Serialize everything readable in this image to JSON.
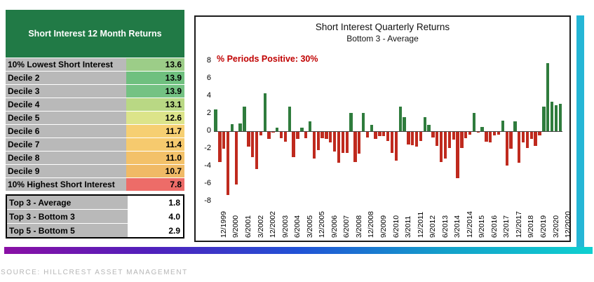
{
  "table": {
    "title": "Short Interest 12 Month Returns",
    "rows": [
      {
        "label": "10% Lowest Short Interest",
        "value": "13.6",
        "color": "#9ccd88"
      },
      {
        "label": "Decile 2",
        "value": "13.9",
        "color": "#6fc07f"
      },
      {
        "label": "Decile 3",
        "value": "13.9",
        "color": "#74c283"
      },
      {
        "label": "Decile 4",
        "value": "13.1",
        "color": "#b9d884"
      },
      {
        "label": "Decile 5",
        "value": "12.6",
        "color": "#dce48a"
      },
      {
        "label": "Decile 6",
        "value": "11.7",
        "color": "#f6cf72"
      },
      {
        "label": "Decile 7",
        "value": "11.4",
        "color": "#f6ca6e"
      },
      {
        "label": "Decile 8",
        "value": "11.0",
        "color": "#f3c169"
      },
      {
        "label": "Decile 9",
        "value": "10.7",
        "color": "#f0ba66"
      },
      {
        "label": "10% Highest Short Interest",
        "value": "7.8",
        "color": "#ed6c68"
      }
    ],
    "summary_rows": [
      {
        "label": "Top 3 - Average",
        "value": "1.8"
      },
      {
        "label": "Top 3 - Bottom 3",
        "value": "4.0"
      },
      {
        "label": "Top 5 - Bottom 5",
        "value": "2.9"
      }
    ]
  },
  "chart_data": {
    "type": "bar",
    "title": "Short Interest Quarterly Returns",
    "subtitle": "Bottom 3 - Average",
    "annotation": "% Periods Positive: 30%",
    "annotation_color": "#c00000",
    "ylim": [
      -8,
      8
    ],
    "yticks": [
      8,
      6,
      4,
      2,
      0,
      -2,
      -4,
      -6,
      -8
    ],
    "grid": false,
    "legend_position": "none",
    "tick_every": 3,
    "tick_labels": [
      "12/1999",
      "9/2000",
      "6/2001",
      "3/2002",
      "12/2002",
      "9/2003",
      "6/2004",
      "3/2005",
      "12/2005",
      "9/2006",
      "6/2007",
      "3/2008",
      "12/2008",
      "9/2009",
      "6/2010",
      "3/2011",
      "12/2011",
      "9/2012",
      "6/2013",
      "3/2014",
      "12/2014",
      "9/2015",
      "6/2016",
      "3/2017",
      "12/2017",
      "9/2018",
      "6/2019",
      "3/2020",
      "12/2020"
    ],
    "positive_color": "#2f7c3d",
    "negative_color": "#bf2a1e",
    "x": [
      "12/1999",
      "3/2000",
      "6/2000",
      "9/2000",
      "12/2000",
      "3/2001",
      "6/2001",
      "9/2001",
      "12/2001",
      "3/2002",
      "6/2002",
      "9/2002",
      "12/2002",
      "3/2003",
      "6/2003",
      "9/2003",
      "12/2003",
      "3/2004",
      "6/2004",
      "9/2004",
      "12/2004",
      "3/2005",
      "6/2005",
      "9/2005",
      "12/2005",
      "3/2006",
      "6/2006",
      "9/2006",
      "12/2006",
      "3/2007",
      "6/2007",
      "9/2007",
      "12/2007",
      "3/2008",
      "6/2008",
      "9/2008",
      "12/2008",
      "3/2009",
      "6/2009",
      "9/2009",
      "12/2009",
      "3/2010",
      "6/2010",
      "9/2010",
      "12/2010",
      "3/2011",
      "6/2011",
      "9/2011",
      "12/2011",
      "3/2012",
      "6/2012",
      "9/2012",
      "12/2012",
      "3/2013",
      "6/2013",
      "9/2013",
      "12/2013",
      "3/2014",
      "6/2014",
      "9/2014",
      "12/2014",
      "3/2015",
      "6/2015",
      "9/2015",
      "12/2015",
      "3/2016",
      "6/2016",
      "9/2016",
      "12/2016",
      "3/2017",
      "6/2017",
      "9/2017",
      "12/2017",
      "3/2018",
      "6/2018",
      "9/2018",
      "12/2018",
      "3/2019",
      "6/2019",
      "9/2019",
      "12/2019",
      "3/2020",
      "6/2020",
      "9/2020",
      "12/2020"
    ],
    "values": [
      2.5,
      -3.4,
      -1.9,
      -7.2,
      0.8,
      -6.0,
      0.9,
      2.8,
      -1.7,
      -2.9,
      -4.2,
      -0.4,
      4.3,
      -0.8,
      -0.1,
      0.4,
      -0.7,
      -1.1,
      2.8,
      -2.9,
      -0.8,
      0.4,
      -0.7,
      1.1,
      -3.0,
      -2.1,
      -0.7,
      -0.8,
      -1.2,
      -2.2,
      -3.5,
      -2.4,
      -2.4,
      2.1,
      -3.4,
      -2.5,
      2.1,
      -0.6,
      0.7,
      -0.8,
      -0.5,
      -0.5,
      -1.0,
      -2.4,
      -3.3,
      2.8,
      1.6,
      -1.4,
      -1.5,
      -1.7,
      -1.0,
      1.6,
      0.7,
      -0.6,
      -1.6,
      -3.4,
      -3.0,
      -1.8,
      -0.9,
      -5.3,
      -1.8,
      -0.7,
      -0.3,
      2.1,
      -0.1,
      0.5,
      -1.1,
      -1.2,
      -0.4,
      -0.3,
      1.2,
      -3.8,
      -1.9,
      1.1,
      -3.5,
      -1.2,
      -1.8,
      -0.8,
      -1.6,
      -0.4,
      2.8,
      7.8,
      3.4,
      3.0,
      3.1
    ]
  },
  "accents": {
    "teal_bar_color": "#25b6d6",
    "gradient_colors": [
      "#8a10a5",
      "#5020bc",
      "#2152d6",
      "#13a0ca",
      "#0fd0d0"
    ]
  },
  "footer": {
    "source": "SOURCE: HILLCREST ASSET MANAGEMENT"
  }
}
